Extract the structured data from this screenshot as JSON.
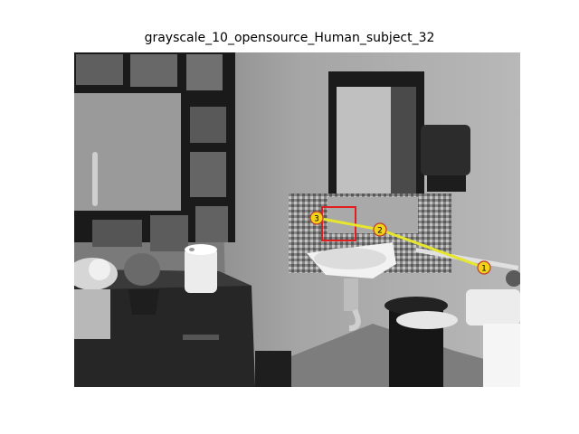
{
  "figure": {
    "title": "grayscale_10_opensource_Human_subject_32"
  },
  "scanpath": {
    "path_color": "#e6e62e",
    "marker_fill": "#f2d21b",
    "marker_stroke": "#c0392b",
    "roi_color": "#e02020",
    "fixations": [
      {
        "label": "1"
      },
      {
        "label": "2"
      },
      {
        "label": "3"
      }
    ]
  }
}
